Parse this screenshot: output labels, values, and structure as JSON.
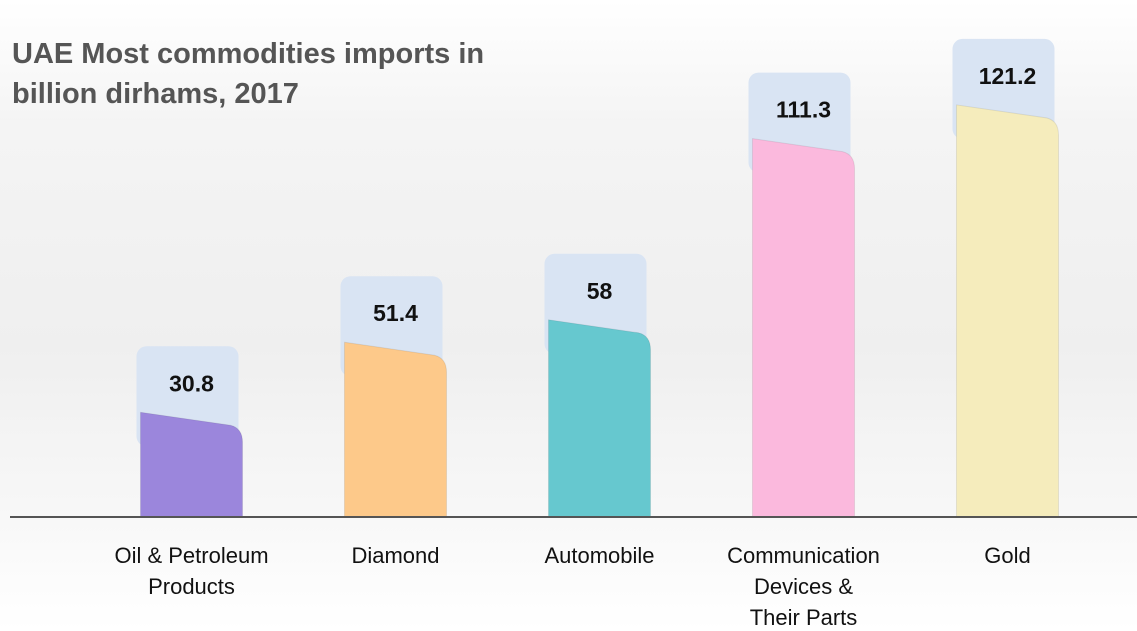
{
  "chart_data": {
    "type": "bar",
    "title_lines": [
      "UAE Most commodities imports in",
      "billion dirhams, 2017"
    ],
    "categories": [
      "Oil & Petroleum\nProducts",
      "Diamond",
      "Automobile",
      "Communication\nDevices &\nTheir Parts",
      "Gold"
    ],
    "values": [
      30.8,
      51.4,
      58,
      111.3,
      121.2
    ],
    "value_labels": [
      "30.8",
      "51.4",
      "58",
      "111.3",
      "121.2"
    ],
    "colors": [
      "#9b86dc",
      "#fdc98a",
      "#66c8cf",
      "#fbb9dd",
      "#f5ecbc"
    ],
    "label_box_color": "#d9e4f3",
    "axis_color": "#555555",
    "grid": false,
    "legend": "none"
  }
}
